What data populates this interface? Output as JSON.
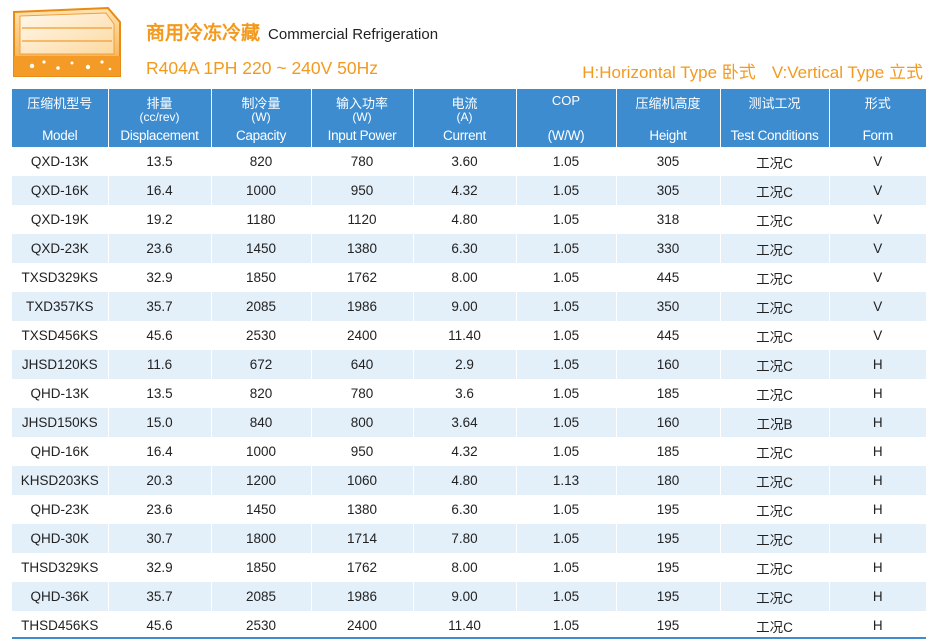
{
  "header": {
    "title_cn": "商用冷冻冷藏",
    "title_en": "Commercial Refrigeration",
    "subtitle": "R404A 1PH 220 ~ 240V 50Hz",
    "type_h": "H:Horizontal Type 卧式",
    "type_v": "V:Vertical Type 立式",
    "accent_color": "#f39a1e",
    "logo_icon": "display-cabinet-icon"
  },
  "table": {
    "header_color": "#3e8cd0",
    "stripe_color": "#e3eff9",
    "columns": [
      {
        "cn": "压缩机型号",
        "unit": "",
        "en": "Model"
      },
      {
        "cn": "排量",
        "unit": "(cc/rev)",
        "en": "Displacement"
      },
      {
        "cn": "制冷量",
        "unit": "(W)",
        "en": "Capacity"
      },
      {
        "cn": "输入功率",
        "unit": "(W)",
        "en": "Input Power"
      },
      {
        "cn": "电流",
        "unit": "(A)",
        "en": "Current"
      },
      {
        "cn": "COP",
        "unit": "",
        "en": "(W/W)"
      },
      {
        "cn": "压缩机高度",
        "unit": "",
        "en": "Height"
      },
      {
        "cn": "测试工况",
        "unit": "",
        "en": "Test Conditions"
      },
      {
        "cn": "形式",
        "unit": "",
        "en": "Form"
      }
    ],
    "rows": [
      [
        "QXD-13K",
        "13.5",
        "820",
        "780",
        "3.60",
        "1.05",
        "305",
        "工况C",
        "V"
      ],
      [
        "QXD-16K",
        "16.4",
        "1000",
        "950",
        "4.32",
        "1.05",
        "305",
        "工况C",
        "V"
      ],
      [
        "QXD-19K",
        "19.2",
        "1180",
        "1120",
        "4.80",
        "1.05",
        "318",
        "工况C",
        "V"
      ],
      [
        "QXD-23K",
        "23.6",
        "1450",
        "1380",
        "6.30",
        "1.05",
        "330",
        "工况C",
        "V"
      ],
      [
        "TXSD329KS",
        "32.9",
        "1850",
        "1762",
        "8.00",
        "1.05",
        "445",
        "工况C",
        "V"
      ],
      [
        "TXD357KS",
        "35.7",
        "2085",
        "1986",
        "9.00",
        "1.05",
        "350",
        "工况C",
        "V"
      ],
      [
        "TXSD456KS",
        "45.6",
        "2530",
        "2400",
        "11.40",
        "1.05",
        "445",
        "工况C",
        "V"
      ],
      [
        "JHSD120KS",
        "11.6",
        "672",
        "640",
        "2.9",
        "1.05",
        "160",
        "工况C",
        "H"
      ],
      [
        "QHD-13K",
        "13.5",
        "820",
        "780",
        "3.6",
        "1.05",
        "185",
        "工况C",
        "H"
      ],
      [
        "JHSD150KS",
        "15.0",
        "840",
        "800",
        "3.64",
        "1.05",
        "160",
        "工况B",
        "H"
      ],
      [
        "QHD-16K",
        "16.4",
        "1000",
        "950",
        "4.32",
        "1.05",
        "185",
        "工况C",
        "H"
      ],
      [
        "KHSD203KS",
        "20.3",
        "1200",
        "1060",
        "4.80",
        "1.13",
        "180",
        "工况C",
        "H"
      ],
      [
        "QHD-23K",
        "23.6",
        "1450",
        "1380",
        "6.30",
        "1.05",
        "195",
        "工况C",
        "H"
      ],
      [
        "QHD-30K",
        "30.7",
        "1800",
        "1714",
        "7.80",
        "1.05",
        "195",
        "工况C",
        "H"
      ],
      [
        "THSD329KS",
        "32.9",
        "1850",
        "1762",
        "8.00",
        "1.05",
        "195",
        "工况C",
        "H"
      ],
      [
        "QHD-36K",
        "35.7",
        "2085",
        "1986",
        "9.00",
        "1.05",
        "195",
        "工况C",
        "H"
      ],
      [
        "THSD456KS",
        "45.6",
        "2530",
        "2400",
        "11.40",
        "1.05",
        "195",
        "工况C",
        "H"
      ]
    ]
  }
}
